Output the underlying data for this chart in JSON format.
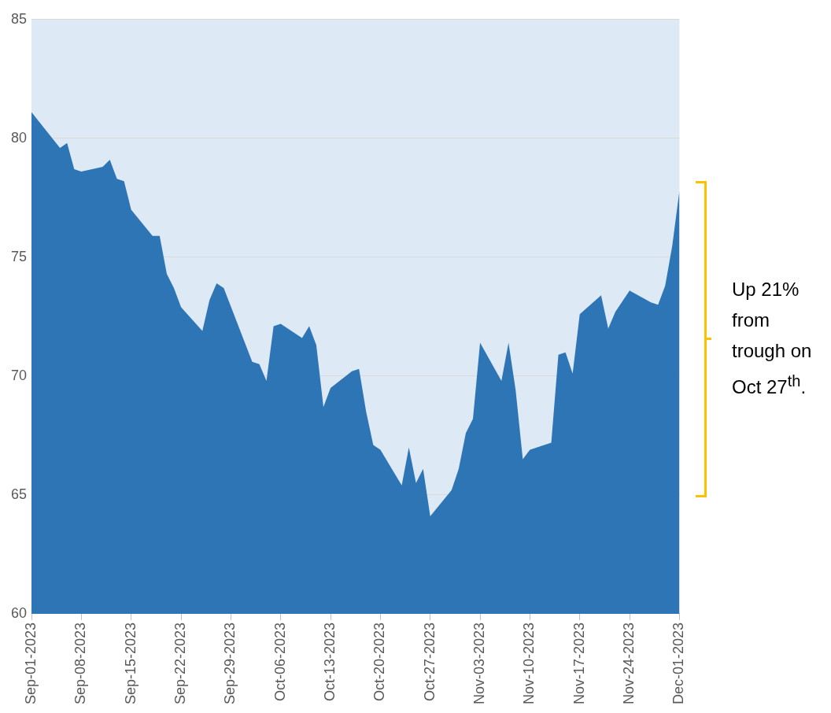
{
  "chart_data": {
    "type": "area",
    "annotations": [
      "Up 21% from trough on Oct 27$^{th}$."
    ],
    "x": [
      "2023-09-01",
      "2023-09-05",
      "2023-09-06",
      "2023-09-07",
      "2023-09-08",
      "2023-09-11",
      "2023-09-12",
      "2023-09-13",
      "2023-09-14",
      "2023-09-15",
      "2023-09-18",
      "2023-09-19",
      "2023-09-20",
      "2023-09-21",
      "2023-09-22",
      "2023-09-25",
      "2023-09-26",
      "2023-09-27",
      "2023-09-28",
      "2023-10-02",
      "2023-10-03",
      "2023-10-04",
      "2023-10-05",
      "2023-10-06",
      "2023-10-09",
      "2023-10-10",
      "2023-10-11",
      "2023-10-12",
      "2023-10-13",
      "2023-10-16",
      "2023-10-17",
      "2023-10-18",
      "2023-10-19",
      "2023-10-20",
      "2023-10-23",
      "2023-10-24",
      "2023-10-25",
      "2023-10-26",
      "2023-10-27",
      "2023-10-30",
      "2023-10-31",
      "2023-11-01",
      "2023-11-02",
      "2023-11-03",
      "2023-11-06",
      "2023-11-07",
      "2023-11-08",
      "2023-11-09",
      "2023-11-10",
      "2023-11-13",
      "2023-11-14",
      "2023-11-15",
      "2023-11-16",
      "2023-11-17",
      "2023-11-20",
      "2023-11-21",
      "2023-11-22",
      "2023-11-24",
      "2023-11-27",
      "2023-11-28",
      "2023-11-29",
      "2023-11-30",
      "2023-12-01"
    ],
    "series": [
      {
        "color": "#2e75b6",
        "values": [
          81.1,
          79.6,
          79.8,
          78.7,
          78.6,
          78.8,
          79.1,
          78.3,
          78.2,
          77.0,
          75.9,
          75.9,
          74.3,
          73.7,
          72.9,
          71.9,
          73.2,
          73.9,
          73.7,
          70.6,
          70.5,
          69.8,
          72.1,
          72.2,
          71.6,
          72.1,
          71.3,
          68.7,
          69.5,
          70.2,
          70.3,
          68.5,
          67.1,
          66.9,
          65.4,
          67.0,
          65.5,
          66.1,
          64.1,
          65.2,
          66.1,
          67.6,
          68.2,
          71.4,
          69.8,
          71.4,
          69.4,
          66.5,
          66.9,
          67.2,
          70.9,
          71.0,
          70.1,
          72.6,
          73.4,
          72.0,
          72.7,
          73.6,
          73.1,
          73.0,
          73.8,
          75.5,
          77.8
        ]
      }
    ],
    "xlim": [
      "2023-09-01",
      "2023-12-01"
    ],
    "xticks": [
      {
        "value": "2023-09-01",
        "label": "Sep-01-2023"
      },
      {
        "value": "2023-09-08",
        "label": "Sep-08-2023"
      },
      {
        "value": "2023-09-15",
        "label": "Sep-15-2023"
      },
      {
        "value": "2023-09-22",
        "label": "Sep-22-2023"
      },
      {
        "value": "2023-09-29",
        "label": "Sep-29-2023"
      },
      {
        "value": "2023-10-06",
        "label": "Oct-06-2023"
      },
      {
        "value": "2023-10-13",
        "label": "Oct-13-2023"
      },
      {
        "value": "2023-10-20",
        "label": "Oct-20-2023"
      },
      {
        "value": "2023-10-27",
        "label": "Oct-27-2023"
      },
      {
        "value": "2023-11-03",
        "label": "Nov-03-2023"
      },
      {
        "value": "2023-11-10",
        "label": "Nov-10-2023"
      },
      {
        "value": "2023-11-17",
        "label": "Nov-17-2023"
      },
      {
        "value": "2023-11-24",
        "label": "Nov-24-2023"
      },
      {
        "value": "2023-12-01",
        "label": "Dec-01-2023"
      }
    ],
    "ylim": [
      60,
      85
    ],
    "yticks": [
      60,
      65,
      70,
      75,
      80,
      85
    ],
    "grid": "y",
    "legend": false
  }
}
